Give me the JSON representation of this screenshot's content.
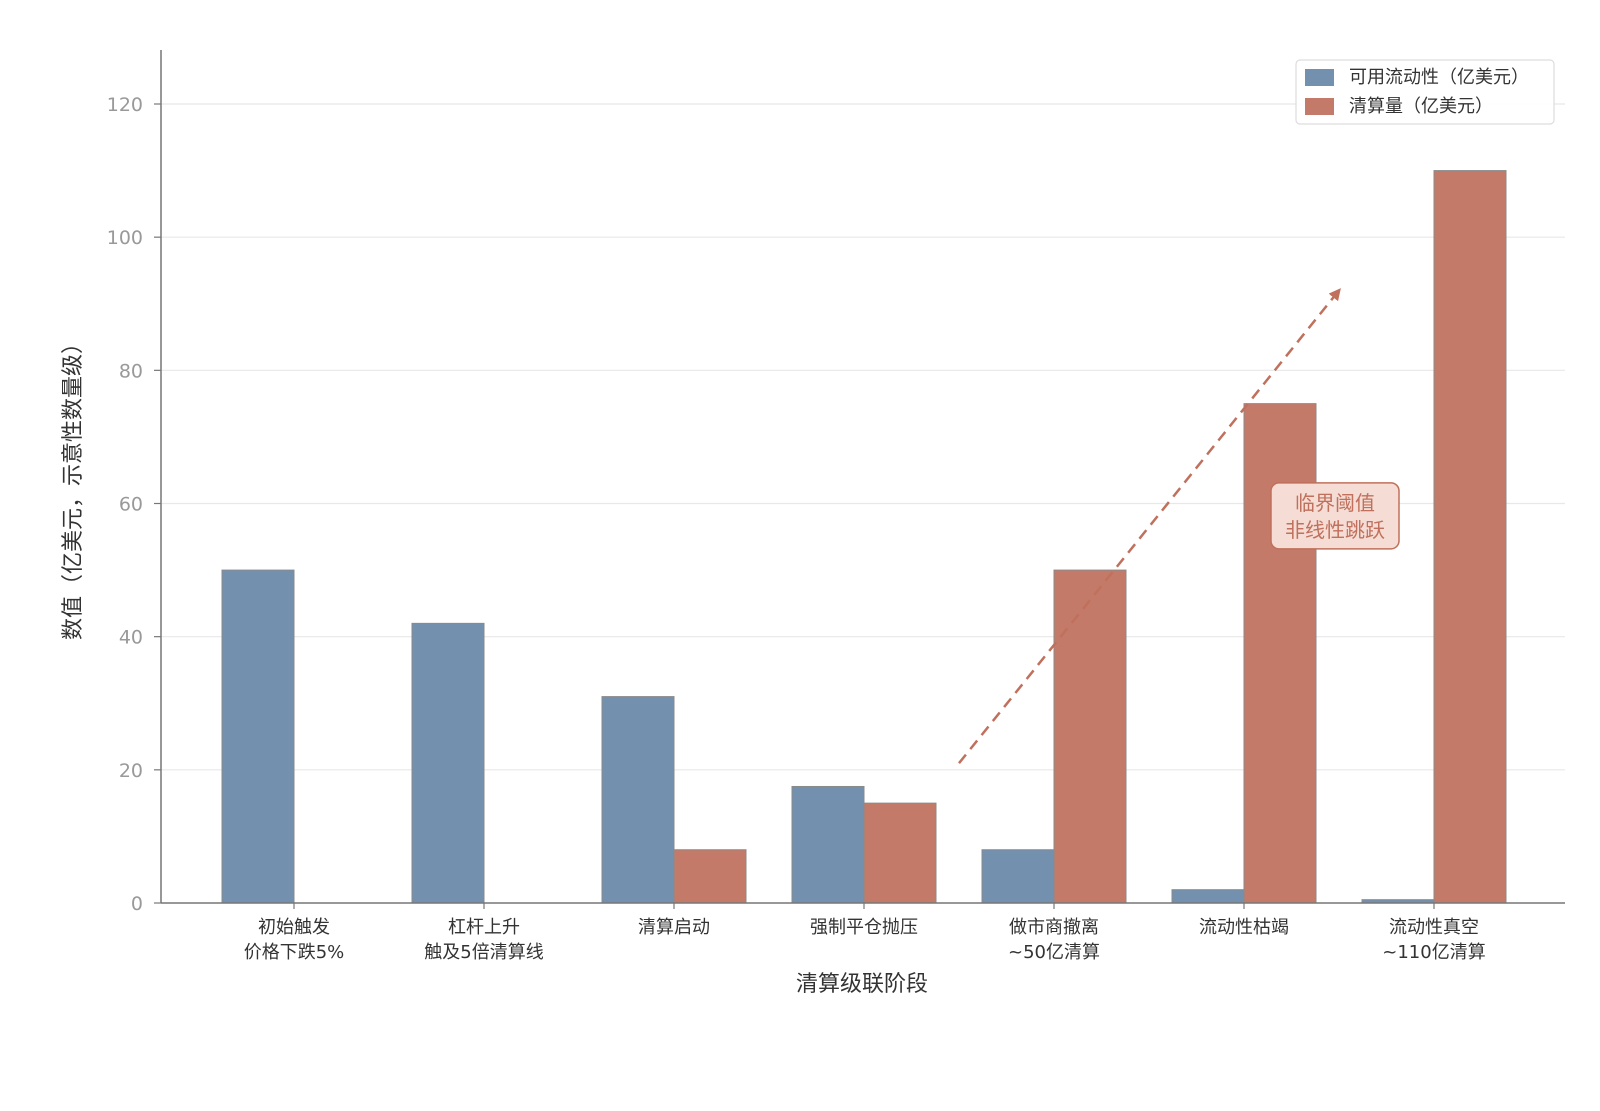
{
  "chart_data": {
    "type": "bar",
    "title": "",
    "xlabel": "清算级联阶段",
    "ylabel": "数值（亿美元，示意性数量级）",
    "ylim": [
      0,
      128
    ],
    "yticks": [
      0,
      20,
      40,
      60,
      80,
      100,
      120
    ],
    "grid": "horizontal",
    "legend_position": "top-right",
    "categories": [
      [
        "初始触发",
        "价格下跌5%"
      ],
      [
        "杠杆上升",
        "触及5倍清算线"
      ],
      [
        "清算启动"
      ],
      [
        "强制平仓抛压"
      ],
      [
        "做市商撤离",
        "~50亿清算"
      ],
      [
        "流动性枯竭"
      ],
      [
        "流动性真空",
        "~110亿清算"
      ]
    ],
    "series": [
      {
        "name": "可用流动性（亿美元）",
        "color": "#7390ae",
        "values": [
          50,
          42,
          31,
          17.5,
          8,
          2,
          0.5
        ]
      },
      {
        "name": "清算量（亿美元）",
        "color": "#c47a68",
        "values": [
          0,
          0,
          8,
          15,
          50,
          75,
          110
        ]
      }
    ],
    "annotation": {
      "lines": [
        "临界阈值",
        "非线性跳跃"
      ],
      "anchor": {
        "category_index": 5.5,
        "y": 58
      },
      "arrow": {
        "from": {
          "category_index": 3.5,
          "y": 21
        },
        "to": {
          "category_index": 5.5,
          "y": 92
        }
      },
      "color": "#c0705c",
      "box_fill": "#f5ddd5"
    }
  }
}
